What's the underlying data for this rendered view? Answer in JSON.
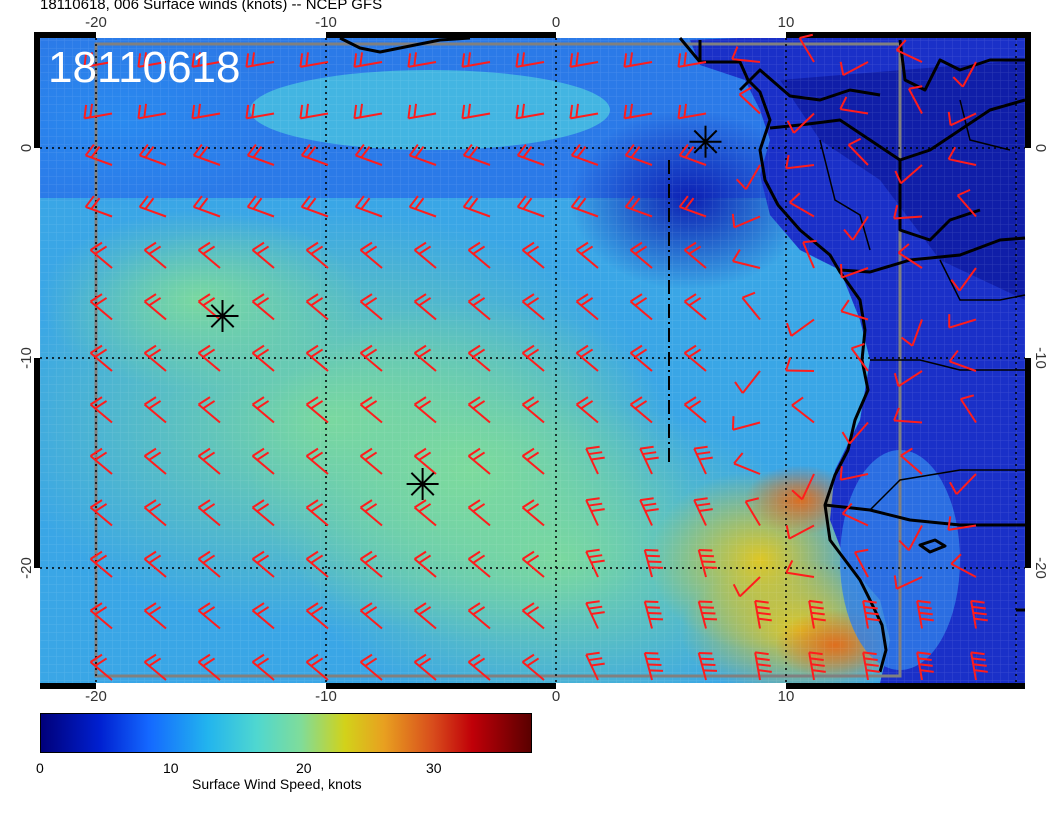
{
  "title": "18110618, 006 Surface winds (knots) -- NCEP GFS",
  "stamp": "18110618",
  "axes": {
    "lon_ticks": [
      "-20",
      "-10",
      "0",
      "10"
    ],
    "lat_ticks": [
      "0",
      "-10",
      "-20"
    ]
  },
  "colorbar": {
    "label": "Surface Wind Speed, knots",
    "ticks": [
      "0",
      "10",
      "20",
      "30"
    ],
    "min": 0,
    "max": 37
  },
  "markers": [
    {
      "name": "storm-marker-1",
      "lon": -14.5,
      "lat": -8
    },
    {
      "name": "storm-marker-2",
      "lon": -5.8,
      "lat": -16
    },
    {
      "name": "storm-marker-3",
      "lon": 6.5,
      "lat": 0.3
    }
  ],
  "colors": {
    "barb": "#ff1c1c",
    "grid": "#000000",
    "coast": "#000000",
    "frame": "#808080"
  }
}
